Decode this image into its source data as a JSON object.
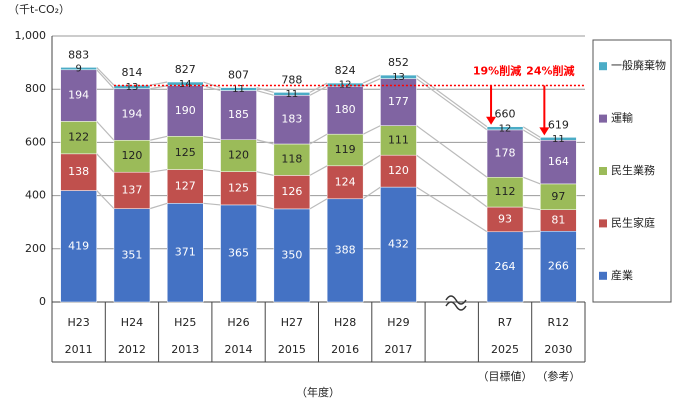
{
  "chart_data": {
    "type": "stacked_bar",
    "y_unit": "（千t-CO₂）",
    "x_title": "（年度）",
    "categories": [
      "H23",
      "H24",
      "H25",
      "H26",
      "H27",
      "H28",
      "H29",
      null,
      "R7",
      "R12"
    ],
    "category_years": [
      "2011",
      "2012",
      "2013",
      "2014",
      "2015",
      "2016",
      "2017",
      null,
      "2025",
      "2030"
    ],
    "category_notes": [
      null,
      null,
      null,
      null,
      null,
      null,
      null,
      null,
      "（目標値）",
      "（参考）"
    ],
    "series": [
      {
        "name": "産業",
        "color": "#4472c4",
        "label_color": "#ffffff",
        "values": [
          419,
          351,
          371,
          365,
          350,
          388,
          432,
          null,
          264,
          266
        ]
      },
      {
        "name": "民生家庭",
        "color": "#c0504d",
        "label_color": "#ffffff",
        "values": [
          138,
          137,
          127,
          125,
          126,
          124,
          120,
          null,
          93,
          81
        ]
      },
      {
        "name": "民生業務",
        "color": "#9bbb59",
        "label_color": "#222222",
        "values": [
          122,
          120,
          125,
          120,
          118,
          119,
          111,
          null,
          112,
          97
        ]
      },
      {
        "name": "運輸",
        "color": "#8064a2",
        "label_color": "#ffffff",
        "values": [
          194,
          194,
          190,
          185,
          183,
          180,
          177,
          null,
          178,
          164
        ]
      },
      {
        "name": "一般廃棄物",
        "color": "#4bacc6",
        "label_color": "#222222",
        "values": [
          9,
          13,
          14,
          11,
          11,
          12,
          13,
          null,
          12,
          11
        ]
      }
    ],
    "totals": [
      883,
      814,
      827,
      807,
      788,
      824,
      852,
      null,
      660,
      619
    ],
    "ylim": [
      0,
      1000
    ],
    "yticks": [
      0,
      200,
      400,
      600,
      800,
      {
        "value": 1000,
        "label": "1,000"
      }
    ],
    "grid": true,
    "reference_line": {
      "value": 814,
      "color": "#ff0000"
    },
    "annotations": [
      {
        "text": "19%削減",
        "category": 8
      },
      {
        "text": "24%削減",
        "category": 9
      }
    ],
    "legend": "right"
  }
}
